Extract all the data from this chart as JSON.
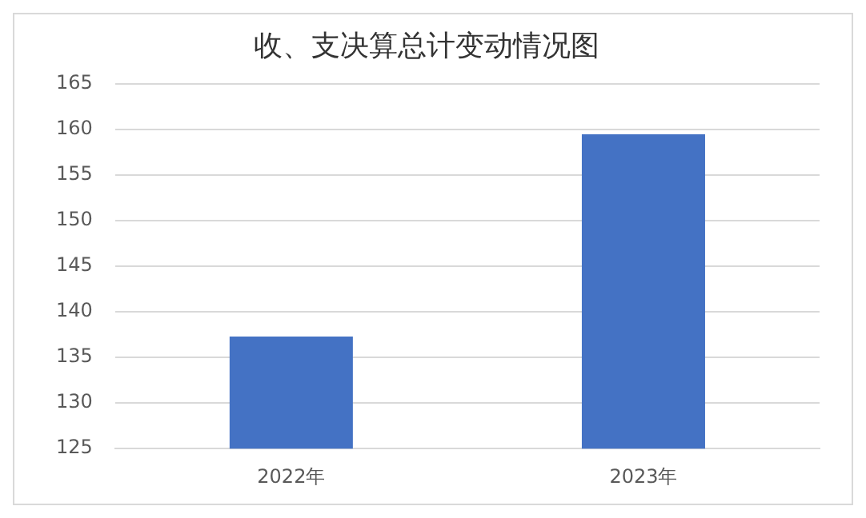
{
  "chart_data": {
    "type": "bar",
    "title": "收、支决算总计变动情况图",
    "categories": [
      "2022年",
      "2023年"
    ],
    "values": [
      137.3,
      159.5
    ],
    "color": "#4472c4",
    "ylim": [
      125,
      165
    ],
    "yticks": [
      125,
      130,
      135,
      140,
      145,
      150,
      155,
      160,
      165
    ],
    "grid": "y"
  }
}
